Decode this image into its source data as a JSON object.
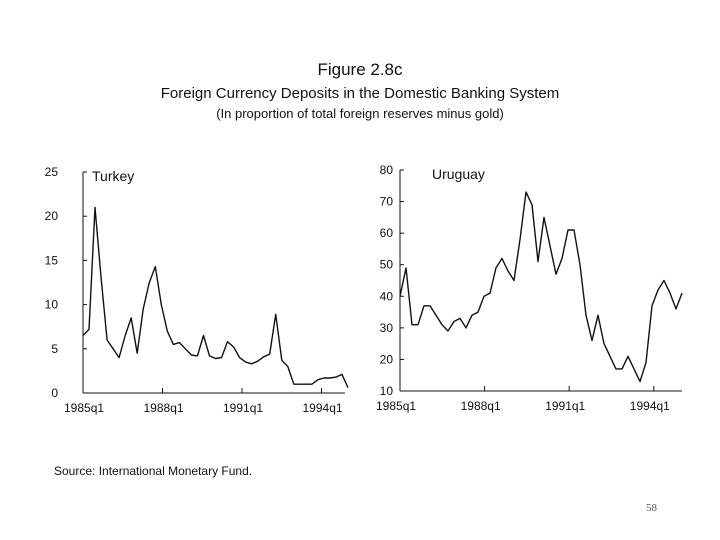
{
  "figure": {
    "title": "Figure 2.8c",
    "subtitle": "Foreign Currency Deposits in the Domestic Banking System",
    "note": "(In proportion of total foreign reserves minus gold)"
  },
  "source": "Source: International Monetary Fund.",
  "page_number": "58",
  "chart_data": [
    {
      "type": "line",
      "panel": "Turkey",
      "title": "Turkey",
      "xlabel": "",
      "ylabel": "",
      "ylim": [
        0,
        25
      ],
      "yticks": [
        0,
        5,
        10,
        15,
        20,
        25
      ],
      "xlim": [
        0,
        40
      ],
      "xtick_labels": [
        "1985q1",
        "1988q1",
        "1991q1",
        "1994q1"
      ],
      "xtick_positions": [
        0,
        12,
        24,
        36
      ],
      "series": [
        {
          "name": "Turkey",
          "values": [
            6.5,
            7.2,
            21.0,
            13.0,
            6.0,
            5.0,
            4.0,
            6.5,
            8.5,
            4.5,
            9.5,
            12.5,
            14.3,
            10.0,
            7.0,
            5.5,
            5.7,
            5.0,
            4.3,
            4.2,
            6.5,
            4.2,
            3.9,
            4.0,
            5.8,
            5.2,
            4.0,
            3.5,
            3.3,
            3.6,
            4.1,
            4.4,
            8.9,
            3.7,
            3.0,
            1.0,
            1.0,
            1.0,
            1.0,
            1.5,
            1.7,
            1.7,
            1.8,
            2.1,
            0.6
          ]
        }
      ]
    },
    {
      "type": "line",
      "panel": "Uruguay",
      "title": "Uruguay",
      "xlabel": "",
      "ylabel": "",
      "ylim": [
        10,
        80
      ],
      "yticks": [
        10,
        20,
        30,
        40,
        50,
        60,
        70,
        80
      ],
      "xlim": [
        0,
        40
      ],
      "xtick_labels": [
        "1985q1",
        "1988q1",
        "1991q1",
        "1994q1"
      ],
      "xtick_positions": [
        0,
        12,
        24,
        36
      ],
      "series": [
        {
          "name": "Uruguay",
          "values": [
            40,
            49,
            31,
            31,
            37,
            37,
            34,
            31,
            29,
            32,
            33,
            30,
            34,
            35,
            40,
            41,
            49,
            52,
            48,
            45,
            58,
            73,
            69,
            51,
            65,
            56,
            47,
            52,
            61,
            61,
            50,
            34,
            26,
            34,
            25,
            21,
            17,
            17,
            21,
            17,
            13,
            19,
            37,
            42,
            45,
            41,
            36,
            41
          ]
        }
      ]
    }
  ]
}
